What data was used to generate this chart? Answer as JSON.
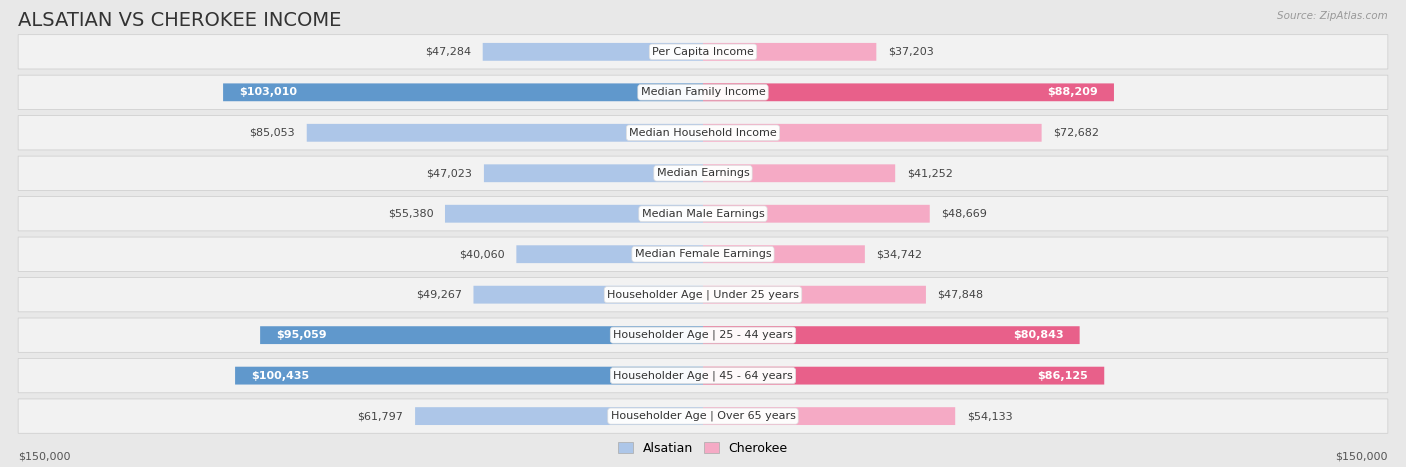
{
  "title": "ALSATIAN VS CHEROKEE INCOME",
  "source": "Source: ZipAtlas.com",
  "categories": [
    "Per Capita Income",
    "Median Family Income",
    "Median Household Income",
    "Median Earnings",
    "Median Male Earnings",
    "Median Female Earnings",
    "Householder Age | Under 25 years",
    "Householder Age | 25 - 44 years",
    "Householder Age | 45 - 64 years",
    "Householder Age | Over 65 years"
  ],
  "alsatian_values": [
    47284,
    103010,
    85053,
    47023,
    55380,
    40060,
    49267,
    95059,
    100435,
    61797
  ],
  "cherokee_values": [
    37203,
    88209,
    72682,
    41252,
    48669,
    34742,
    47848,
    80843,
    86125,
    54133
  ],
  "alsatian_labels": [
    "$47,284",
    "$103,010",
    "$85,053",
    "$47,023",
    "$55,380",
    "$40,060",
    "$49,267",
    "$95,059",
    "$100,435",
    "$61,797"
  ],
  "cherokee_labels": [
    "$37,203",
    "$88,209",
    "$72,682",
    "$41,252",
    "$48,669",
    "$34,742",
    "$47,848",
    "$80,843",
    "$86,125",
    "$54,133"
  ],
  "alsatian_color_light": "#adc6e8",
  "alsatian_color_dark": "#6098cc",
  "cherokee_color_light": "#f5aac5",
  "cherokee_color_dark": "#e8608a",
  "max_value": 150000,
  "background_color": "#e8e8e8",
  "row_bg_color": "#f2f2f2",
  "legend_alsatian": "Alsatian",
  "legend_cherokee": "Cherokee",
  "title_fontsize": 14,
  "label_fontsize": 8,
  "category_fontsize": 8,
  "axis_label": "$150,000",
  "dark_alsatian_indices": [
    1,
    7,
    8
  ],
  "dark_cherokee_indices": [
    1,
    7,
    8
  ]
}
